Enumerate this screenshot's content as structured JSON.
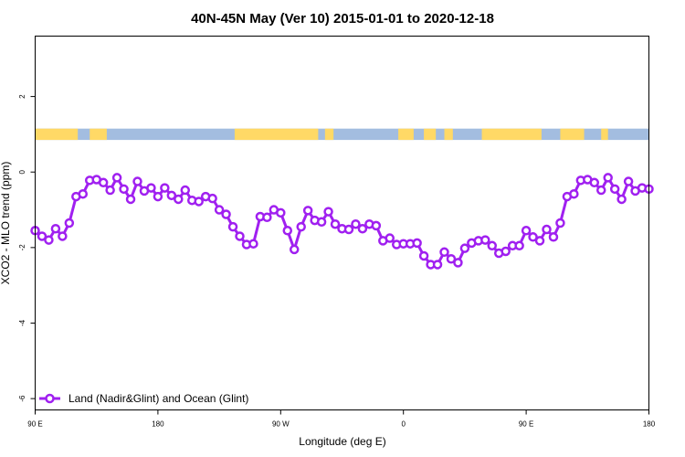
{
  "chart_data": {
    "type": "line",
    "title": "40N-45N May (Ver 10)   2015-01-01 to 2020-12-18",
    "xlabel": "Longitude (deg E)",
    "ylabel": "XCO2 - MLO trend (ppm)",
    "xlim": [
      90,
      450
    ],
    "ylim": [
      -6.3,
      3.6
    ],
    "x_ticks": [
      {
        "value": 90,
        "label": "90 E"
      },
      {
        "value": 162,
        "label": "180"
      },
      {
        "value": 234,
        "label": "90 W"
      },
      {
        "value": 306,
        "label": "0"
      },
      {
        "value": 378,
        "label": "90 E"
      },
      {
        "value": 450,
        "label": "180"
      }
    ],
    "y_ticks": [
      {
        "value": -6,
        "label": "-6"
      },
      {
        "value": -4,
        "label": "-4"
      },
      {
        "value": -2,
        "label": "-2"
      },
      {
        "value": 0,
        "label": "0"
      },
      {
        "value": 2,
        "label": "2"
      }
    ],
    "grid": false,
    "legend_position": "bottom-left",
    "series": [
      {
        "name": "Land (Nadir&Glint) and Ocean (Glint)",
        "color": "#a020f0",
        "x": [
          90,
          94,
          98,
          102,
          106,
          110,
          114,
          118,
          122,
          126,
          130,
          134,
          138,
          142,
          146,
          150,
          154,
          158,
          162,
          166,
          170,
          174,
          178,
          182,
          186,
          190,
          194,
          198,
          202,
          206,
          210,
          214,
          218,
          222,
          226,
          230,
          234,
          238,
          242,
          246,
          250,
          254,
          258,
          262,
          266,
          270,
          274,
          278,
          282,
          286,
          290,
          294,
          298,
          302,
          306,
          310,
          314,
          318,
          322,
          326,
          330,
          334,
          338,
          342,
          346,
          350,
          354,
          358,
          362,
          366,
          370,
          374,
          378,
          382,
          386,
          390,
          394,
          398,
          402,
          406,
          410,
          414,
          418,
          422,
          426,
          430,
          434,
          438,
          442,
          446,
          450
        ],
        "values": [
          -1.55,
          -1.7,
          -1.8,
          -1.5,
          -1.7,
          -1.35,
          -0.65,
          -0.58,
          -0.22,
          -0.2,
          -0.28,
          -0.48,
          -0.15,
          -0.45,
          -0.72,
          -0.25,
          -0.5,
          -0.42,
          -0.65,
          -0.42,
          -0.62,
          -0.72,
          -0.48,
          -0.75,
          -0.78,
          -0.65,
          -0.7,
          -1.0,
          -1.12,
          -1.45,
          -1.7,
          -1.92,
          -1.9,
          -1.18,
          -1.2,
          -1.0,
          -1.08,
          -1.55,
          -2.05,
          -1.45,
          -1.02,
          -1.28,
          -1.32,
          -1.05,
          -1.38,
          -1.5,
          -1.52,
          -1.38,
          -1.5,
          -1.38,
          -1.42,
          -1.82,
          -1.75,
          -1.92,
          -1.9,
          -1.9,
          -1.88,
          -2.22,
          -2.45,
          -2.45,
          -2.12,
          -2.3,
          -2.4,
          -2.02,
          -1.88,
          -1.82,
          -1.8,
          -1.95,
          -2.15,
          -2.1,
          -1.95,
          -1.95,
          -1.55,
          -1.72,
          -1.82,
          -1.52,
          -1.72,
          -1.35,
          -0.65,
          -0.58,
          -0.22,
          -0.2,
          -0.28,
          -0.48,
          -0.15,
          -0.45,
          -0.72,
          -0.25,
          -0.5,
          -0.42,
          -0.45
        ]
      }
    ],
    "land_mask": {
      "land_color": "#ffd966",
      "ocean_color": "#a3bde0",
      "y_range": [
        0.85,
        1.15
      ],
      "land_segments": [
        [
          90,
          115
        ],
        [
          122,
          132
        ],
        [
          207,
          256
        ],
        [
          260,
          265
        ],
        [
          303,
          312
        ],
        [
          318,
          325
        ],
        [
          330,
          335
        ],
        [
          352,
          387
        ],
        [
          398,
          412
        ],
        [
          422,
          426
        ]
      ]
    }
  }
}
